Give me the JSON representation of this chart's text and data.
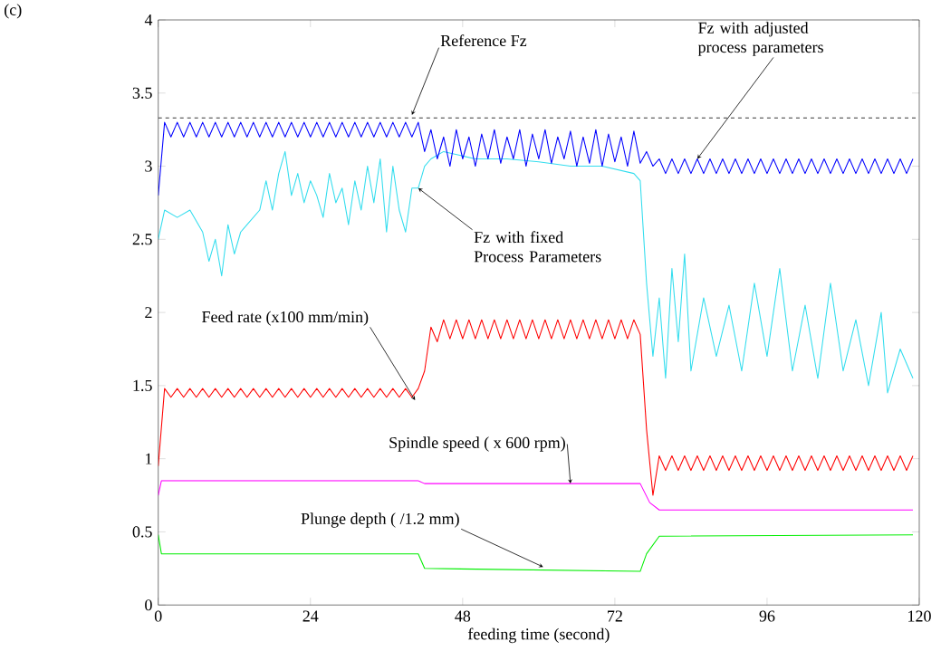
{
  "chart_data": {
    "type": "line",
    "xlabel": "feeding time (second)",
    "xlim": [
      0,
      120
    ],
    "ylim": [
      0,
      4
    ],
    "xticks": [
      0,
      24,
      48,
      72,
      96,
      120
    ],
    "yticks": [
      0,
      0.5,
      1,
      1.5,
      2,
      2.5,
      3,
      3.5,
      4
    ],
    "series": [
      {
        "color": "#33ddee",
        "x": [
          0,
          1,
          3,
          5,
          7,
          8,
          9,
          10,
          11,
          12,
          13,
          14,
          16,
          17,
          18,
          19,
          20,
          21,
          22,
          23,
          24,
          25,
          26,
          27,
          28,
          29,
          30,
          31,
          32,
          33,
          34,
          35,
          36,
          37,
          38,
          39,
          40,
          41,
          42,
          43,
          45,
          50,
          55,
          60,
          65,
          70,
          75,
          76,
          77,
          78,
          79,
          80,
          81,
          82,
          83,
          84,
          86,
          88,
          90,
          92,
          94,
          96,
          98,
          100,
          102,
          104,
          106,
          108,
          110,
          112,
          114,
          115,
          117,
          119
        ],
        "values": [
          2.5,
          2.7,
          2.65,
          2.7,
          2.55,
          2.35,
          2.5,
          2.25,
          2.6,
          2.4,
          2.55,
          2.6,
          2.7,
          2.9,
          2.7,
          2.95,
          3.1,
          2.8,
          2.95,
          2.75,
          2.9,
          2.8,
          2.65,
          2.95,
          2.75,
          2.85,
          2.6,
          2.9,
          2.7,
          3.0,
          2.75,
          3.05,
          2.55,
          3.0,
          2.7,
          2.55,
          2.85,
          2.85,
          3.0,
          3.05,
          3.1,
          3.05,
          3.05,
          3.03,
          3.0,
          3.0,
          2.95,
          2.9,
          2.2,
          1.7,
          2.1,
          1.55,
          2.3,
          1.8,
          2.4,
          1.6,
          2.1,
          1.7,
          2.05,
          1.6,
          2.2,
          1.7,
          2.3,
          1.6,
          2.05,
          1.55,
          2.2,
          1.6,
          1.95,
          1.5,
          2.0,
          1.45,
          1.75,
          1.55
        ]
      },
      {
        "color": "#0000ff",
        "x": [
          0,
          1,
          2,
          3,
          4,
          5,
          6,
          7,
          8,
          9,
          10,
          11,
          12,
          13,
          14,
          15,
          16,
          17,
          18,
          19,
          20,
          21,
          22,
          23,
          24,
          25,
          26,
          27,
          28,
          29,
          30,
          31,
          32,
          33,
          34,
          35,
          36,
          37,
          38,
          39,
          40,
          41,
          42,
          43,
          44,
          45,
          46,
          47,
          48,
          49,
          50,
          51,
          52,
          53,
          54,
          55,
          56,
          57,
          58,
          59,
          60,
          61,
          62,
          63,
          64,
          65,
          66,
          67,
          68,
          69,
          70,
          71,
          72,
          73,
          74,
          75,
          76,
          77,
          78,
          79,
          80,
          81,
          82,
          83,
          84,
          85,
          86,
          87,
          88,
          89,
          90,
          91,
          92,
          93,
          94,
          95,
          96,
          97,
          98,
          99,
          100,
          101,
          102,
          103,
          104,
          105,
          106,
          107,
          108,
          109,
          110,
          111,
          112,
          113,
          114,
          115,
          116,
          117,
          118,
          119
        ],
        "values": [
          2.8,
          3.3,
          3.2,
          3.3,
          3.2,
          3.3,
          3.2,
          3.3,
          3.2,
          3.3,
          3.2,
          3.3,
          3.2,
          3.3,
          3.2,
          3.3,
          3.2,
          3.3,
          3.2,
          3.3,
          3.2,
          3.3,
          3.2,
          3.3,
          3.2,
          3.3,
          3.2,
          3.3,
          3.2,
          3.3,
          3.2,
          3.3,
          3.2,
          3.3,
          3.2,
          3.3,
          3.2,
          3.3,
          3.2,
          3.3,
          3.2,
          3.3,
          3.1,
          3.25,
          3.05,
          3.2,
          3.0,
          3.25,
          3.05,
          3.2,
          3.0,
          3.22,
          3.05,
          3.25,
          3.02,
          3.2,
          3.05,
          3.25,
          3.0,
          3.22,
          3.05,
          3.25,
          3.02,
          3.2,
          3.05,
          3.24,
          3.0,
          3.2,
          3.02,
          3.25,
          3.0,
          3.22,
          3.03,
          3.2,
          3.0,
          3.24,
          3.02,
          3.1,
          3.0,
          3.05,
          2.95,
          3.05,
          2.95,
          3.05,
          2.95,
          3.05,
          2.95,
          3.05,
          2.95,
          3.05,
          2.95,
          3.05,
          2.95,
          3.05,
          2.95,
          3.05,
          2.95,
          3.05,
          2.95,
          3.05,
          2.95,
          3.05,
          2.95,
          3.05,
          2.95,
          3.05,
          2.95,
          3.05,
          2.95,
          3.05,
          2.95,
          3.05,
          2.95,
          3.05,
          2.95,
          3.05,
          2.95,
          3.05,
          2.95,
          3.05
        ]
      },
      {
        "color": "#ff0000",
        "x": [
          0,
          1,
          2,
          3,
          4,
          5,
          6,
          7,
          8,
          9,
          10,
          11,
          12,
          13,
          14,
          15,
          16,
          17,
          18,
          19,
          20,
          21,
          22,
          23,
          24,
          25,
          26,
          27,
          28,
          29,
          30,
          31,
          32,
          33,
          34,
          35,
          36,
          37,
          38,
          39,
          40,
          41,
          42,
          43,
          44,
          45,
          46,
          47,
          48,
          49,
          50,
          51,
          52,
          53,
          54,
          55,
          56,
          57,
          58,
          59,
          60,
          61,
          62,
          63,
          64,
          65,
          66,
          67,
          68,
          69,
          70,
          71,
          72,
          73,
          74,
          75,
          76,
          77,
          78,
          79,
          80,
          81,
          82,
          83,
          84,
          85,
          86,
          87,
          88,
          89,
          90,
          91,
          92,
          93,
          94,
          95,
          96,
          97,
          98,
          99,
          100,
          101,
          102,
          103,
          104,
          105,
          106,
          107,
          108,
          109,
          110,
          111,
          112,
          113,
          114,
          115,
          116,
          117,
          118,
          119
        ],
        "values": [
          0.95,
          1.48,
          1.42,
          1.48,
          1.42,
          1.48,
          1.42,
          1.48,
          1.42,
          1.48,
          1.42,
          1.48,
          1.42,
          1.48,
          1.42,
          1.48,
          1.42,
          1.48,
          1.42,
          1.48,
          1.42,
          1.48,
          1.42,
          1.48,
          1.42,
          1.48,
          1.42,
          1.48,
          1.42,
          1.48,
          1.42,
          1.48,
          1.42,
          1.48,
          1.42,
          1.48,
          1.42,
          1.48,
          1.42,
          1.48,
          1.42,
          1.48,
          1.6,
          1.9,
          1.8,
          1.95,
          1.82,
          1.95,
          1.82,
          1.95,
          1.82,
          1.95,
          1.82,
          1.95,
          1.82,
          1.95,
          1.82,
          1.95,
          1.82,
          1.95,
          1.82,
          1.95,
          1.82,
          1.95,
          1.82,
          1.95,
          1.82,
          1.95,
          1.82,
          1.95,
          1.82,
          1.95,
          1.82,
          1.95,
          1.82,
          1.95,
          1.85,
          1.2,
          0.75,
          1.02,
          0.92,
          1.02,
          0.92,
          1.02,
          0.92,
          1.02,
          0.92,
          1.02,
          0.92,
          1.02,
          0.92,
          1.02,
          0.92,
          1.02,
          0.92,
          1.02,
          0.92,
          1.02,
          0.92,
          1.02,
          0.92,
          1.02,
          0.92,
          1.02,
          0.92,
          1.02,
          0.92,
          1.02,
          0.92,
          1.02,
          0.92,
          1.02,
          0.92,
          1.02,
          0.92,
          1.02,
          0.92,
          1.02,
          0.92,
          1.02
        ]
      },
      {
        "color": "#ff00ff",
        "x": [
          0,
          0.5,
          41,
          42,
          76,
          77.5,
          79,
          119
        ],
        "values": [
          0.75,
          0.85,
          0.85,
          0.83,
          0.83,
          0.7,
          0.65,
          0.65
        ]
      },
      {
        "color": "#00ee00",
        "x": [
          0,
          0.5,
          41,
          42,
          76,
          77,
          79,
          119
        ],
        "values": [
          0.48,
          0.35,
          0.35,
          0.25,
          0.23,
          0.35,
          0.47,
          0.48
        ]
      }
    ],
    "ref_lines": [
      {
        "axis": "y",
        "value": 3.33,
        "color": "#000000",
        "line_style": "dashed"
      }
    ],
    "annotations": [
      "(c)",
      {
        "text": "Reference Fz",
        "x": 40,
        "y": 3.35
      },
      {
        "text": "Fz with adjusted process parameters",
        "x": 85,
        "y": 3.05
      },
      {
        "text": "Fz with  fixed Process Parameters",
        "x": 41,
        "y": 2.85
      },
      {
        "text": "Feed rate (x100 mm/min)",
        "x": 40.5,
        "y": 1.4
      },
      {
        "text": "Spindle speed ( x 600 rpm)",
        "x": 65,
        "y": 0.83
      },
      {
        "text": "Plunge depth ( /1.2 mm)",
        "x": 60.7,
        "y": 0.26
      }
    ]
  }
}
